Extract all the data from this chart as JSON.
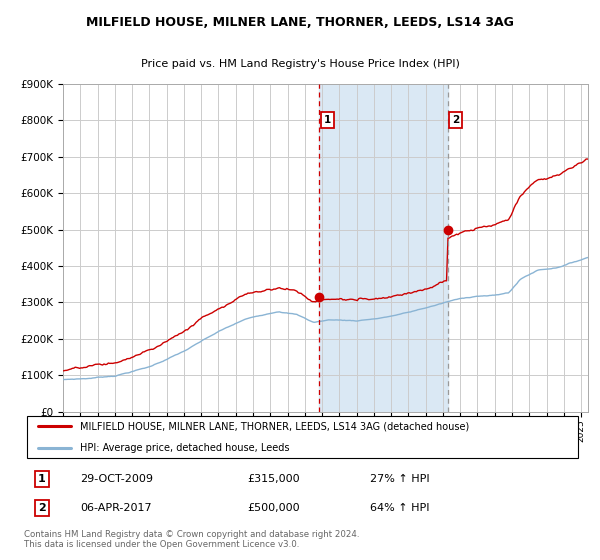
{
  "title1": "MILFIELD HOUSE, MILNER LANE, THORNER, LEEDS, LS14 3AG",
  "title2": "Price paid vs. HM Land Registry's House Price Index (HPI)",
  "ylim": [
    0,
    900000
  ],
  "yticks": [
    0,
    100000,
    200000,
    300000,
    400000,
    500000,
    600000,
    700000,
    800000,
    900000
  ],
  "ytick_labels": [
    "£0",
    "£100K",
    "£200K",
    "£300K",
    "£400K",
    "£500K",
    "£600K",
    "£700K",
    "£800K",
    "£900K"
  ],
  "grid_color": "#cccccc",
  "shade_color": "#dae8f4",
  "purchase1_date": 2009.83,
  "purchase1_price": 315000,
  "purchase2_date": 2017.27,
  "purchase2_price": 500000,
  "legend_entry1": "MILFIELD HOUSE, MILNER LANE, THORNER, LEEDS, LS14 3AG (detached house)",
  "legend_entry2": "HPI: Average price, detached house, Leeds",
  "table_row1": [
    "1",
    "29-OCT-2009",
    "£315,000",
    "27% ↑ HPI"
  ],
  "table_row2": [
    "2",
    "06-APR-2017",
    "£500,000",
    "64% ↑ HPI"
  ],
  "footnote": "Contains HM Land Registry data © Crown copyright and database right 2024.\nThis data is licensed under the Open Government Licence v3.0.",
  "line_color_property": "#cc0000",
  "line_color_hpi": "#8ab4d4",
  "marker_color": "#cc0000",
  "vline_color1": "#cc0000",
  "vline_color2": "#999999",
  "label_box_color1": "#cc0000",
  "label_box_color2": "#cc0000"
}
